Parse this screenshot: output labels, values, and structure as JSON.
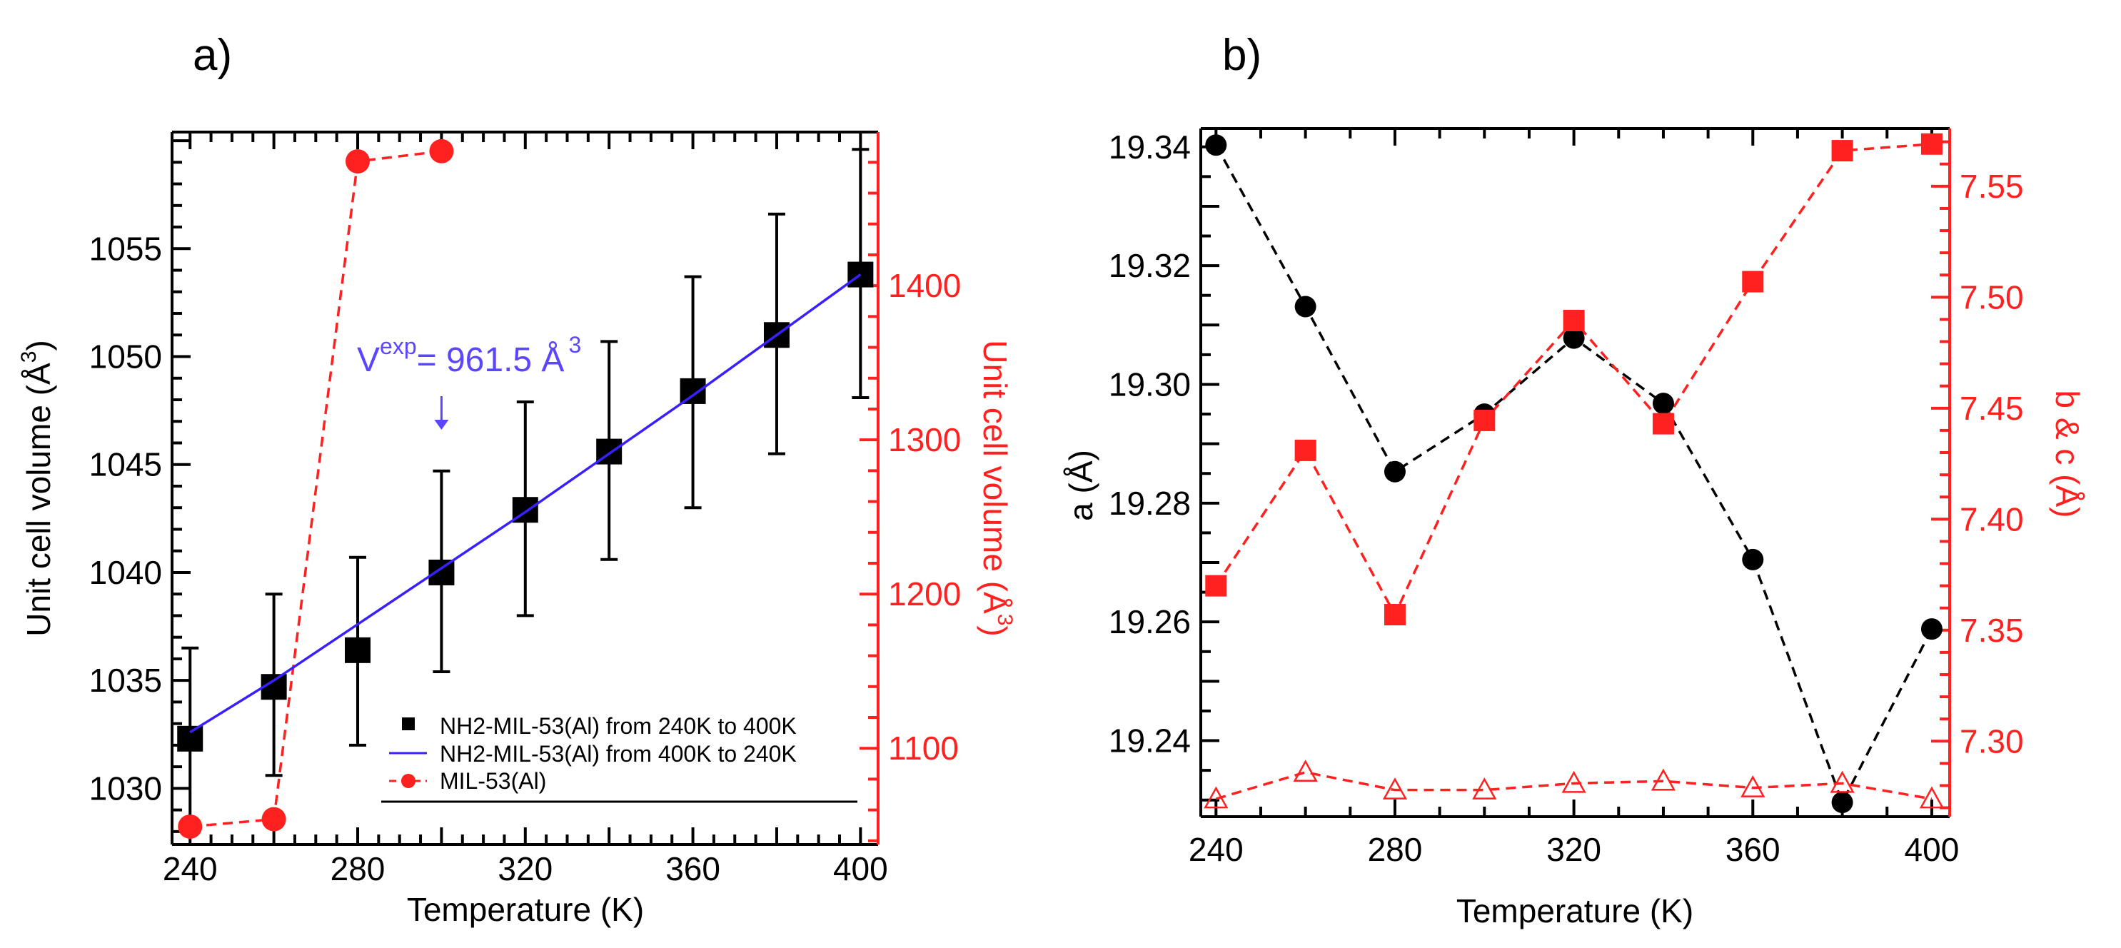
{
  "colors": {
    "black": "#000000",
    "red": "#ff2020",
    "blue": "#3a1fff",
    "annotation": "#5a46ff"
  },
  "chart_data": [
    {
      "panel_label": "a)",
      "type": "scatter",
      "xlabel": "Temperature (K)",
      "ylabel": "Unit cell volume (Å",
      "ylabel_sup": "3",
      "ylabel_close": ")",
      "y2label": "Unit cell volume (Å",
      "y2label_sup": "3",
      "y2label_close": ")",
      "xlim": [
        235.7,
        404.2
      ],
      "ylim": [
        1027.4,
        1060.4
      ],
      "y2lim": [
        1037.6,
        1499.6
      ],
      "xticks": [
        240,
        280,
        320,
        360,
        400
      ],
      "yticks": [
        1030,
        1035,
        1040,
        1045,
        1050,
        1055
      ],
      "y2ticks": [
        1100,
        1200,
        1300,
        1400
      ],
      "annotation": {
        "base": "V",
        "sup": "exp",
        "text": "= 961.5 Å",
        "sup2": "3",
        "arrow_x": 300
      },
      "legend": {
        "placement": "bottom-right",
        "entries": [
          "NH2-MIL-53(Al) from 240K  to 400K",
          "NH2-MIL-53(Al) from 400K  to 240K",
          "MIL-53(Al)"
        ]
      },
      "series": [
        {
          "name": "NH2-MIL-53(Al) from 240K  to 400K",
          "axis": "left",
          "marker": "square",
          "x": [
            240,
            260,
            280,
            300,
            320,
            340,
            360,
            380,
            400
          ],
          "y": [
            1032.3,
            1034.7,
            1036.4,
            1040.0,
            1042.9,
            1045.6,
            1048.4,
            1051.0,
            1053.8
          ],
          "err_low": [
            1028.1,
            1030.6,
            1032.0,
            1035.4,
            1038.0,
            1040.6,
            1043.0,
            1045.5,
            1048.1
          ],
          "err_high": [
            1036.5,
            1039.0,
            1040.7,
            1044.7,
            1047.9,
            1050.7,
            1053.7,
            1056.6,
            1059.6
          ]
        },
        {
          "name": "NH2-MIL-53(Al) from 400K  to 240K",
          "axis": "left",
          "marker": "line",
          "x": [
            240,
            260,
            280,
            300,
            320,
            340,
            360,
            380,
            400
          ],
          "y": [
            1032.6,
            1035.0,
            1037.6,
            1040.2,
            1042.8,
            1045.5,
            1048.2,
            1051.0,
            1053.8
          ]
        },
        {
          "name": "MIL-53(Al)",
          "axis": "right",
          "marker": "circle",
          "x": [
            240,
            260,
            280,
            300
          ],
          "y": [
            1049.2,
            1054.0,
            1480.6,
            1487.2
          ]
        }
      ]
    },
    {
      "panel_label": "b)",
      "type": "scatter",
      "xlabel": "Temperature (K)",
      "ylabel": "a (Å)",
      "y2label": "b & c (Å)",
      "xlim": [
        236.6,
        404.0
      ],
      "ylim": [
        19.2272,
        19.3431
      ],
      "y2lim": [
        7.266,
        7.576
      ],
      "xticks": [
        240,
        280,
        320,
        360,
        400
      ],
      "yticks": [
        "19.24",
        "19.26",
        "19.28",
        "19.30",
        "19.32",
        "19.34"
      ],
      "y2ticks": [
        "7.30",
        "7.35",
        "7.40",
        "7.45",
        "7.50",
        "7.55"
      ],
      "series": [
        {
          "name": "a",
          "axis": "left",
          "marker": "circle",
          "x": [
            240,
            260,
            280,
            300,
            320,
            340,
            360,
            380,
            400
          ],
          "y": [
            19.3403,
            19.3131,
            19.2853,
            19.295,
            19.3078,
            19.2968,
            19.2705,
            19.2296,
            19.2588
          ]
        },
        {
          "name": "b",
          "axis": "right",
          "marker": "square",
          "x": [
            240,
            260,
            280,
            300,
            320,
            340,
            360,
            380,
            400
          ],
          "y": [
            7.37,
            7.431,
            7.357,
            7.4445,
            7.4895,
            7.443,
            7.507,
            7.566,
            7.569
          ]
        },
        {
          "name": "c",
          "axis": "right",
          "marker": "triangle-open",
          "x": [
            240,
            260,
            280,
            300,
            320,
            340,
            360,
            380,
            400
          ],
          "y": [
            7.274,
            7.286,
            7.278,
            7.278,
            7.281,
            7.282,
            7.279,
            7.281,
            7.274
          ]
        }
      ]
    }
  ]
}
